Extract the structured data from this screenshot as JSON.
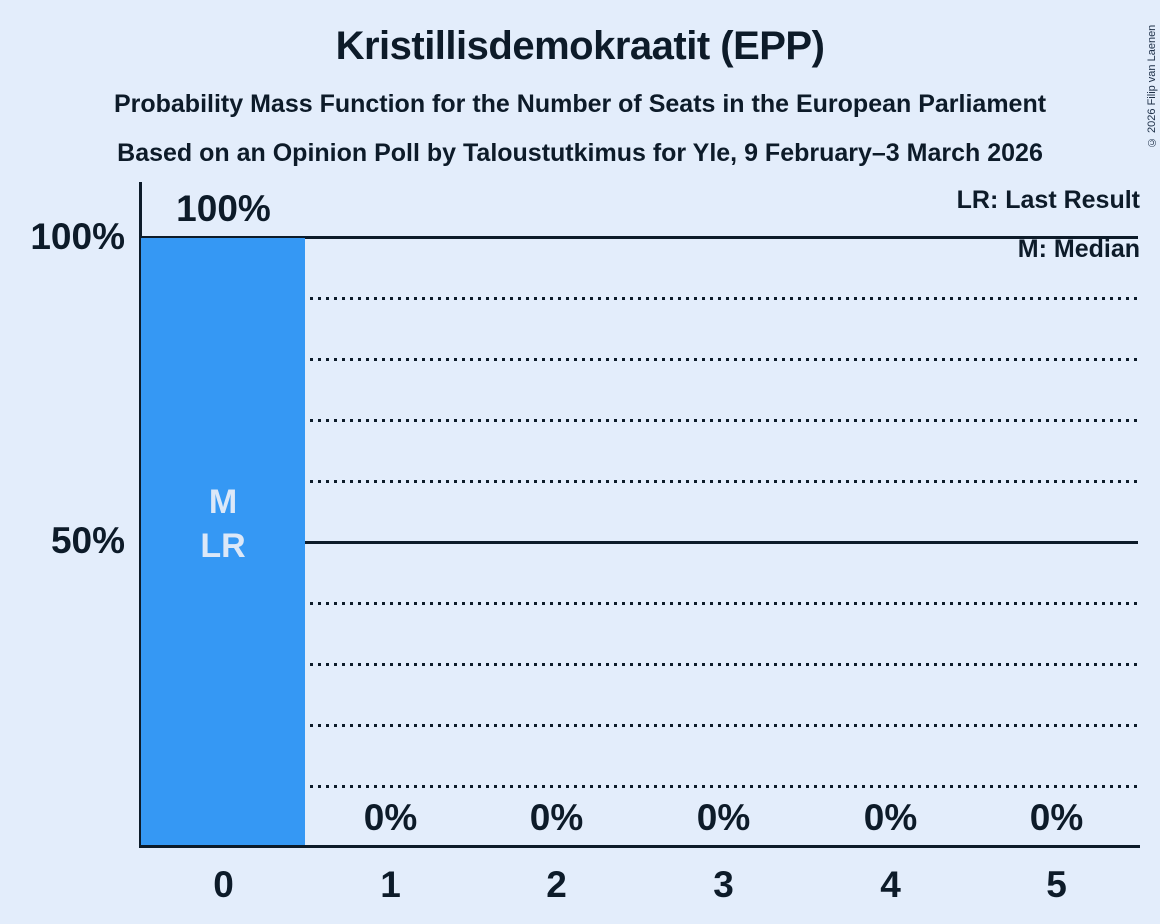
{
  "title": "Kristillisdemokraatit (EPP)",
  "subtitle1": "Probability Mass Function for the Number of Seats in the European Parliament",
  "subtitle2": "Based on an Opinion Poll by Taloustutkimus for Yle, 9 February–3 March 2026",
  "copyright": "© 2026 Filip van Laenen",
  "legend": {
    "last_result": "LR: Last Result",
    "median": "M: Median"
  },
  "colors": {
    "background": "#e3edfb",
    "bar": "#3598f4",
    "text": "#0d1b29",
    "bar_annotation_text": "#dce8f8"
  },
  "chart_data": {
    "type": "bar",
    "title": "Kristillisdemokraatit (EPP)",
    "categories": [
      "0",
      "1",
      "2",
      "3",
      "4",
      "5"
    ],
    "values": [
      100,
      0,
      0,
      0,
      0,
      0
    ],
    "value_labels": [
      "100%",
      "0%",
      "0%",
      "0%",
      "0%",
      "0%"
    ],
    "ylim": [
      0,
      100
    ],
    "yticks": [
      {
        "value": 100,
        "label": "100%"
      },
      {
        "value": 50,
        "label": "50%"
      }
    ],
    "gridlines": {
      "solid_percent": [
        100,
        50
      ],
      "dotted_percent": [
        90,
        80,
        70,
        60,
        40,
        30,
        20,
        10
      ]
    },
    "legend_position": "top-right",
    "bar_annotations": {
      "0": [
        "M",
        "LR"
      ]
    },
    "median_seats": "0",
    "last_result_seats": "0"
  }
}
